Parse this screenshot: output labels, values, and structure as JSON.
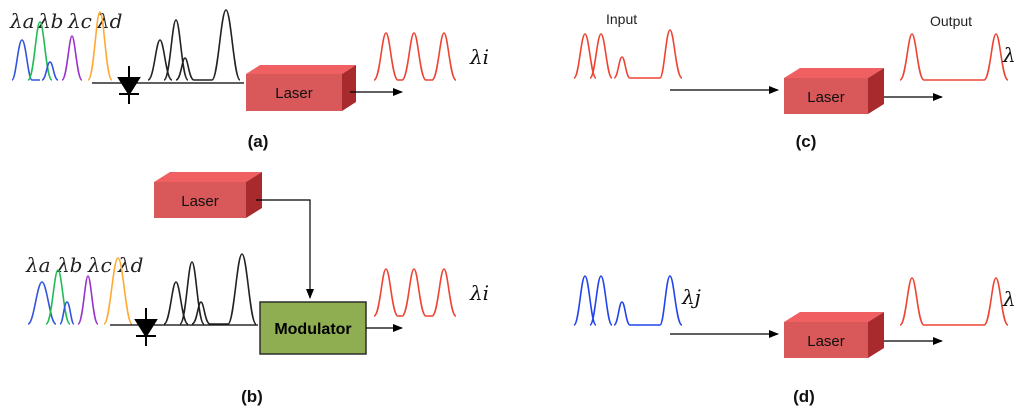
{
  "panels": {
    "a": {
      "caption": "(a)",
      "wavelength_labels": [
        "λa",
        "λb",
        "λc",
        "λd"
      ],
      "laser_label": "Laser",
      "output_label": "λi"
    },
    "b": {
      "caption": "(b)",
      "wavelength_labels": [
        "λa",
        "λb",
        "λc",
        "λd"
      ],
      "laser_label": "Laser",
      "modulator_label": "Modulator",
      "output_label": "λi"
    },
    "c": {
      "caption": "(c)",
      "input_label": "Input",
      "output_title": "Output",
      "laser_label": "Laser",
      "output_label": "λ"
    },
    "d": {
      "caption": "(d)",
      "input_label": "λj",
      "laser_label": "Laser",
      "output_label": "λ"
    }
  },
  "colors": {
    "lambda_a": "#3355dd",
    "lambda_b": "#22bb55",
    "lambda_c": "#9933cc",
    "lambda_d": "#ffaa33",
    "detected": "#222222",
    "output": "#ee4433",
    "input_blue": "#2244ee",
    "laser_front": "#d9585a",
    "laser_top": "#f06062",
    "laser_side": "#a82a2c",
    "modulator": "#8fae52"
  }
}
